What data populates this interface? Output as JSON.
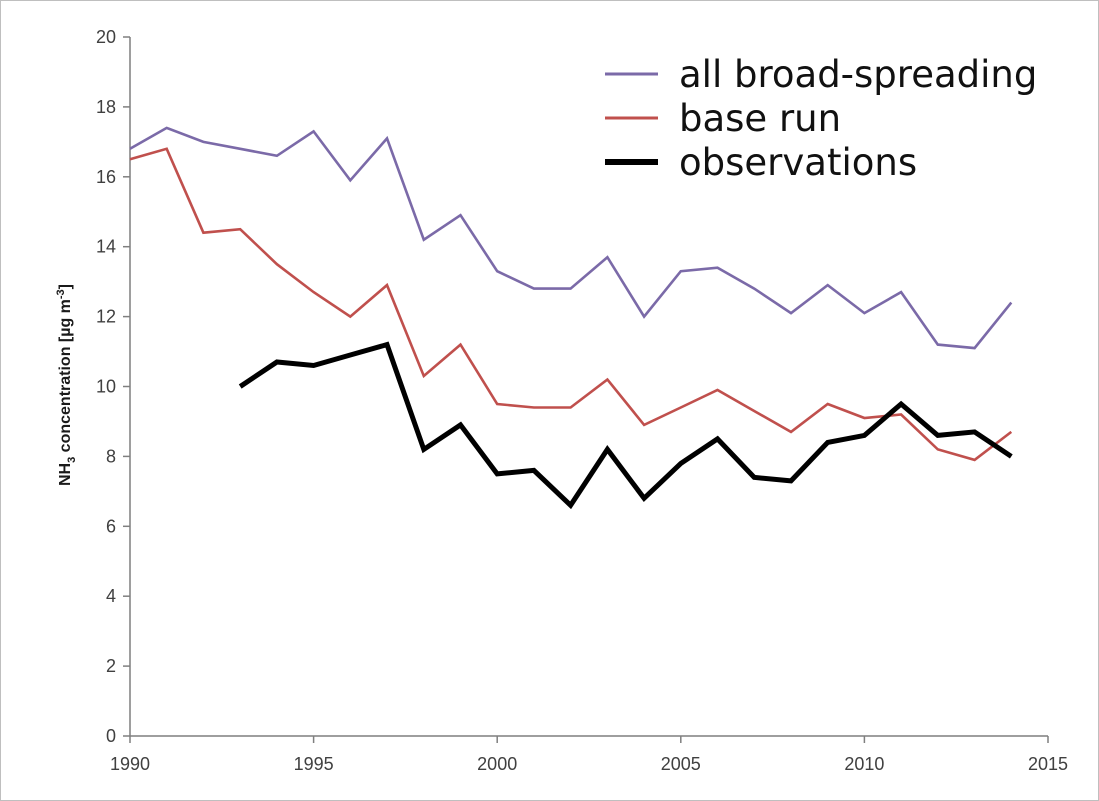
{
  "chart_data": {
    "type": "line",
    "title": "",
    "xlabel": "",
    "ylabel": {
      "prefix": "NH",
      "subscript": "3",
      "middle": " concentration [µg m",
      "superscript": "-3",
      "suffix": "]"
    },
    "xlim": [
      1990,
      2015
    ],
    "ylim": [
      0,
      20
    ],
    "x_ticks": [
      "1990",
      "1995",
      "2000",
      "2005",
      "2010",
      "2015"
    ],
    "y_ticks": [
      "0",
      "2",
      "4",
      "6",
      "8",
      "10",
      "12",
      "14",
      "16",
      "18",
      "20"
    ],
    "grid": false,
    "legend_position": "top-right",
    "series": [
      {
        "name": "all broad-spreading",
        "color": "#7b6aa8",
        "x": [
          1990,
          1991,
          1992,
          1993,
          1994,
          1995,
          1996,
          1997,
          1998,
          1999,
          2000,
          2001,
          2002,
          2003,
          2004,
          2005,
          2006,
          2007,
          2008,
          2009,
          2010,
          2011,
          2012,
          2013,
          2014
        ],
        "values": [
          16.8,
          17.4,
          17.0,
          16.8,
          16.6,
          17.3,
          15.9,
          17.1,
          14.2,
          14.9,
          13.3,
          12.8,
          12.8,
          13.7,
          12.0,
          13.3,
          13.4,
          12.8,
          12.1,
          12.9,
          12.1,
          12.7,
          11.2,
          11.1,
          12.4
        ]
      },
      {
        "name": "base run",
        "color": "#c0504d",
        "x": [
          1990,
          1991,
          1992,
          1993,
          1994,
          1995,
          1996,
          1997,
          1998,
          1999,
          2000,
          2001,
          2002,
          2003,
          2004,
          2005,
          2006,
          2007,
          2008,
          2009,
          2010,
          2011,
          2012,
          2013,
          2014
        ],
        "values": [
          16.5,
          16.8,
          14.4,
          14.5,
          13.5,
          12.7,
          12.0,
          12.9,
          10.3,
          11.2,
          9.5,
          9.4,
          9.4,
          10.2,
          8.9,
          9.4,
          9.9,
          9.3,
          8.7,
          9.5,
          9.1,
          9.2,
          8.2,
          7.9,
          8.7
        ]
      },
      {
        "name": "observations",
        "color": "#000000",
        "x": [
          1993,
          1994,
          1995,
          1996,
          1997,
          1998,
          1999,
          2000,
          2001,
          2002,
          2003,
          2004,
          2005,
          2006,
          2007,
          2008,
          2009,
          2010,
          2011,
          2012,
          2013,
          2014
        ],
        "values": [
          10.0,
          10.7,
          10.6,
          10.9,
          11.2,
          8.2,
          8.9,
          7.5,
          7.6,
          6.6,
          8.2,
          6.8,
          7.8,
          8.5,
          7.4,
          7.3,
          8.4,
          8.6,
          9.5,
          8.6,
          8.7,
          8.0
        ]
      }
    ]
  }
}
